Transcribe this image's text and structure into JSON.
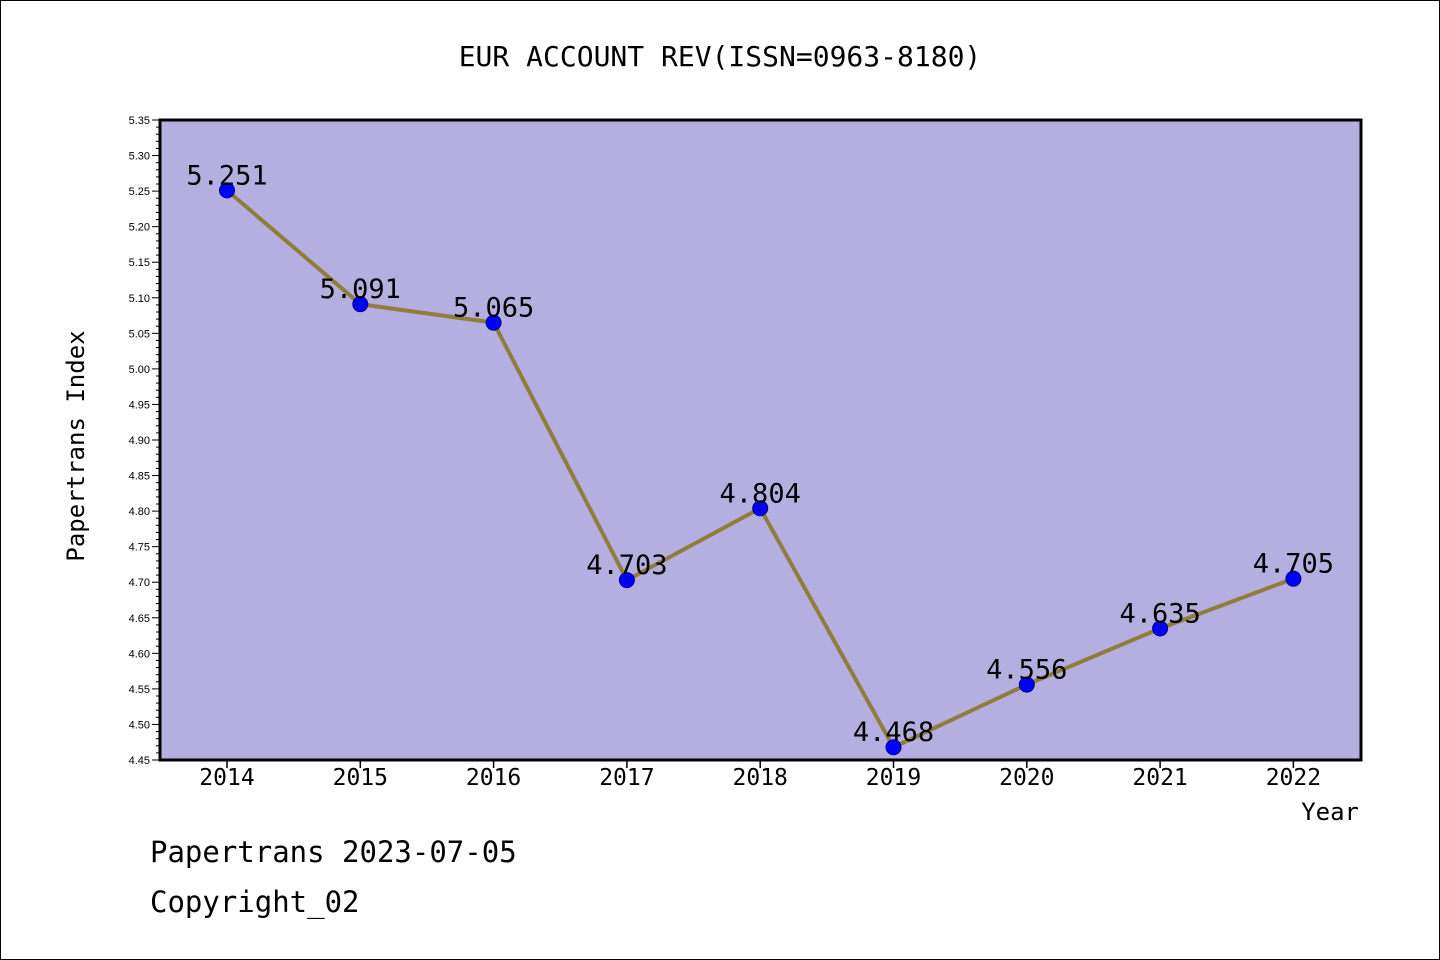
{
  "chart_data": {
    "type": "line",
    "title": "EUR ACCOUNT REV(ISSN=0963-8180)",
    "xlabel": "Year",
    "ylabel": "Papertrans Index",
    "categories": [
      "2014",
      "2015",
      "2016",
      "2017",
      "2018",
      "2019",
      "2020",
      "2021",
      "2022"
    ],
    "series": [
      {
        "values": [
          5.251,
          5.091,
          5.065,
          4.703,
          4.804,
          4.468,
          4.556,
          4.635,
          4.705
        ],
        "labels": [
          "5.251",
          "5.091",
          "5.065",
          "4.703",
          "4.804",
          "4.468",
          "4.556",
          "4.635",
          "4.705"
        ]
      }
    ],
    "ylim": [
      4.45,
      5.35
    ],
    "yticks": [
      "4.45",
      "4.50",
      "4.55",
      "4.60",
      "4.65",
      "4.70",
      "4.75",
      "4.80",
      "4.85",
      "4.90",
      "4.95",
      "5.00",
      "5.05",
      "5.10",
      "5.15",
      "5.20",
      "5.25",
      "5.30",
      "5.35"
    ],
    "grid": false,
    "legend": "none",
    "colors": {
      "plot_background": "#b5aee1",
      "line": "#8f7e3a",
      "marker": "#0000ff",
      "marker_edge": "#00008b",
      "axis": "#000000"
    }
  },
  "footer": {
    "line1": "Papertrans 2023-07-05",
    "line2": "Copyright_02"
  }
}
